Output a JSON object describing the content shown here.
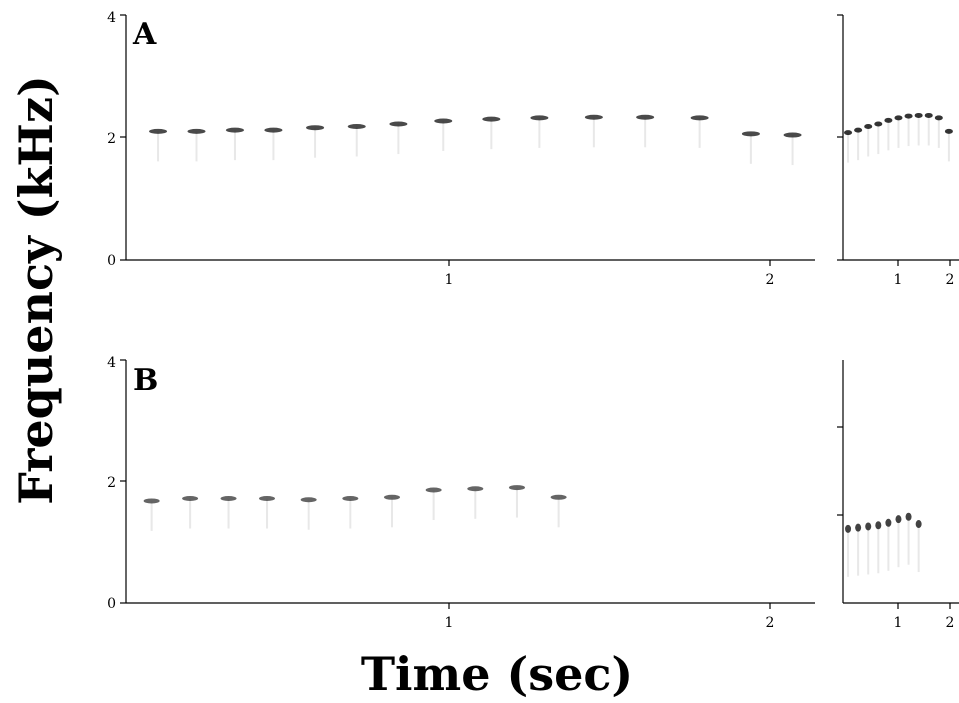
{
  "figure": {
    "ylabel": "Frequency (kHz)",
    "xlabel": "Time (sec)"
  },
  "chart_data": [
    {
      "type": "scatter",
      "panel": "A",
      "description_view": "spectrogram",
      "xlim": [
        0,
        2.15
      ],
      "ylim": [
        0,
        4
      ],
      "yticks": [
        0,
        2,
        4
      ],
      "xticks": [
        1,
        2
      ],
      "series": [
        {
          "points": [
            {
              "x": 0.1,
              "y": 2.1
            },
            {
              "x": 0.22,
              "y": 2.1
            },
            {
              "x": 0.34,
              "y": 2.12
            },
            {
              "x": 0.46,
              "y": 2.12
            },
            {
              "x": 0.59,
              "y": 2.16
            },
            {
              "x": 0.72,
              "y": 2.18
            },
            {
              "x": 0.85,
              "y": 2.22
            },
            {
              "x": 0.99,
              "y": 2.27
            },
            {
              "x": 1.14,
              "y": 2.3
            },
            {
              "x": 1.29,
              "y": 2.32
            },
            {
              "x": 1.46,
              "y": 2.33
            },
            {
              "x": 1.62,
              "y": 2.33
            },
            {
              "x": 1.79,
              "y": 2.32
            },
            {
              "x": 1.95,
              "y": 2.06
            },
            {
              "x": 2.08,
              "y": 2.04
            }
          ]
        }
      ]
    },
    {
      "type": "scatter",
      "panel": "A-inset",
      "xlim": [
        0,
        2.3
      ],
      "ylim": [
        0,
        4
      ],
      "yticks": [
        2
      ],
      "xticks": [
        1,
        2
      ],
      "series": [
        {
          "points": [
            {
              "x": 0.1,
              "y": 2.08
            },
            {
              "x": 0.3,
              "y": 2.12
            },
            {
              "x": 0.5,
              "y": 2.18
            },
            {
              "x": 0.7,
              "y": 2.22
            },
            {
              "x": 0.9,
              "y": 2.28
            },
            {
              "x": 1.1,
              "y": 2.32
            },
            {
              "x": 1.3,
              "y": 2.35
            },
            {
              "x": 1.5,
              "y": 2.36
            },
            {
              "x": 1.7,
              "y": 2.36
            },
            {
              "x": 1.9,
              "y": 2.32
            },
            {
              "x": 2.1,
              "y": 2.1
            }
          ]
        }
      ]
    },
    {
      "type": "scatter",
      "panel": "B",
      "xlim": [
        0,
        2.15
      ],
      "ylim": [
        0,
        4
      ],
      "yticks": [
        0,
        2,
        4
      ],
      "xticks": [
        1,
        2
      ],
      "series": [
        {
          "points": [
            {
              "x": 0.08,
              "y": 1.68
            },
            {
              "x": 0.2,
              "y": 1.72
            },
            {
              "x": 0.32,
              "y": 1.72
            },
            {
              "x": 0.44,
              "y": 1.72
            },
            {
              "x": 0.57,
              "y": 1.7
            },
            {
              "x": 0.7,
              "y": 1.72
            },
            {
              "x": 0.83,
              "y": 1.74
            },
            {
              "x": 0.96,
              "y": 1.86
            },
            {
              "x": 1.09,
              "y": 1.88
            },
            {
              "x": 1.22,
              "y": 1.9
            },
            {
              "x": 1.35,
              "y": 1.74
            }
          ]
        }
      ]
    },
    {
      "type": "scatter",
      "panel": "B-inset",
      "xlim": [
        0,
        2.3
      ],
      "ylim": [
        0,
        4
      ],
      "yticks": [
        2
      ],
      "xticks": [
        1,
        2
      ],
      "series": [
        {
          "points": [
            {
              "x": 0.1,
              "y": 1.22
            },
            {
              "x": 0.3,
              "y": 1.24
            },
            {
              "x": 0.5,
              "y": 1.26
            },
            {
              "x": 0.7,
              "y": 1.28
            },
            {
              "x": 0.9,
              "y": 1.32
            },
            {
              "x": 1.1,
              "y": 1.38
            },
            {
              "x": 1.3,
              "y": 1.42
            },
            {
              "x": 1.5,
              "y": 1.3
            }
          ]
        }
      ]
    }
  ],
  "labels": {
    "panel_a": "A",
    "panel_b": "B",
    "a_y0": "0",
    "a_y2": "2",
    "a_y4": "4",
    "a_x1": "1",
    "a_x2": "2",
    "b_y0": "0",
    "b_y2": "2",
    "b_y4": "4",
    "b_x1": "1",
    "b_x2": "2",
    "ai_x1": "1",
    "ai_x2": "2",
    "bi_x1": "1",
    "bi_x2": "2"
  }
}
